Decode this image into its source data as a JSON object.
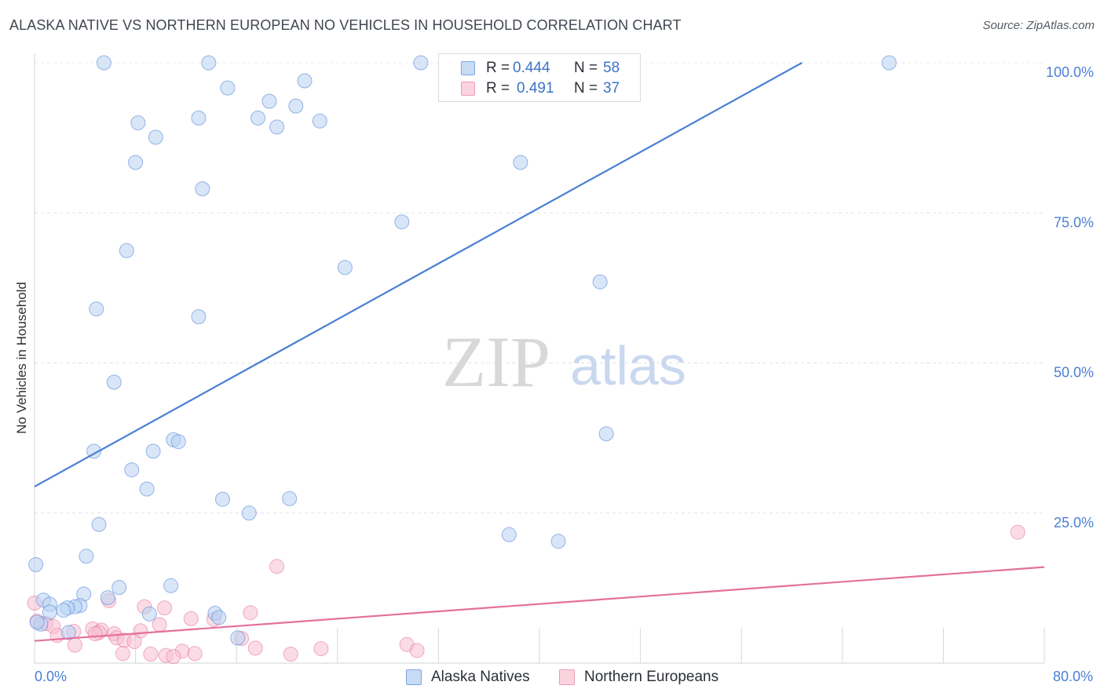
{
  "header": {
    "title": "ALASKA NATIVE VS NORTHERN EUROPEAN NO VEHICLES IN HOUSEHOLD CORRELATION CHART",
    "source": "Source: ZipAtlas.com"
  },
  "watermark": {
    "zip": "ZIP",
    "atlas": "atlas"
  },
  "legend_top": {
    "rows": [
      {
        "r_label": "R =",
        "r_value": "0.444",
        "n_label": "N =",
        "n_value": "58",
        "color": "#b8d1f3"
      },
      {
        "r_label": "R =",
        "r_value": "0.491",
        "n_label": "N =",
        "n_value": "37",
        "color": "#f7c0d1"
      }
    ]
  },
  "legend_bottom": {
    "items": [
      {
        "label": "Alaska Natives",
        "color": "#b8d1f3"
      },
      {
        "label": "Northern Europeans",
        "color": "#f7c0d1"
      }
    ]
  },
  "chart_data": {
    "type": "scatter",
    "title": "ALASKA NATIVE VS NORTHERN EUROPEAN NO VEHICLES IN HOUSEHOLD CORRELATION CHART",
    "ylabel": "No Vehicles in Household",
    "xlabel": "",
    "xlim": [
      0,
      80
    ],
    "ylim": [
      0,
      102
    ],
    "x_tick_labels": [
      "0.0%",
      "80.0%"
    ],
    "y_ticks": [
      25,
      50,
      75,
      100
    ],
    "y_tick_labels": [
      "25.0%",
      "50.0%",
      "75.0%",
      "100.0%"
    ],
    "grid": true,
    "legend_placement": "bottom",
    "series": [
      {
        "name": "Alaska Natives",
        "color": "#4a7fd4",
        "fill": "#b8d1f3",
        "r": "0.444",
        "n": "58",
        "trend": {
          "x": [
            0,
            60.8
          ],
          "y": [
            29.4,
            100
          ]
        },
        "points": [
          [
            5.5,
            100
          ],
          [
            13.8,
            100
          ],
          [
            30.6,
            100
          ],
          [
            33.0,
            100
          ],
          [
            67.7,
            100
          ],
          [
            15.3,
            95.8
          ],
          [
            21.4,
            97.0
          ],
          [
            18.6,
            93.6
          ],
          [
            20.7,
            92.8
          ],
          [
            13.0,
            90.8
          ],
          [
            8.2,
            90.0
          ],
          [
            17.7,
            90.8
          ],
          [
            22.6,
            90.3
          ],
          [
            19.2,
            89.3
          ],
          [
            9.6,
            87.6
          ],
          [
            8.0,
            83.4
          ],
          [
            38.5,
            83.4
          ],
          [
            13.3,
            79.0
          ],
          [
            29.1,
            73.5
          ],
          [
            7.3,
            68.7
          ],
          [
            24.6,
            65.9
          ],
          [
            44.8,
            63.5
          ],
          [
            4.9,
            59.0
          ],
          [
            13.0,
            57.7
          ],
          [
            6.3,
            46.8
          ],
          [
            11.0,
            37.2
          ],
          [
            11.4,
            36.9
          ],
          [
            45.3,
            38.2
          ],
          [
            4.7,
            35.3
          ],
          [
            9.4,
            35.3
          ],
          [
            7.7,
            32.2
          ],
          [
            8.9,
            29.0
          ],
          [
            14.9,
            27.3
          ],
          [
            20.2,
            27.4
          ],
          [
            17.0,
            25.0
          ],
          [
            5.1,
            23.1
          ],
          [
            37.6,
            21.4
          ],
          [
            41.5,
            20.3
          ],
          [
            4.1,
            17.8
          ],
          [
            0.1,
            16.4
          ],
          [
            6.7,
            12.6
          ],
          [
            10.8,
            12.9
          ],
          [
            3.9,
            11.5
          ],
          [
            5.8,
            10.9
          ],
          [
            0.7,
            10.5
          ],
          [
            1.2,
            9.8
          ],
          [
            3.6,
            9.6
          ],
          [
            3.2,
            9.4
          ],
          [
            2.6,
            9.2
          ],
          [
            2.3,
            8.8
          ],
          [
            1.2,
            8.5
          ],
          [
            9.1,
            8.2
          ],
          [
            14.3,
            8.3
          ],
          [
            14.6,
            7.6
          ],
          [
            0.5,
            6.5
          ],
          [
            2.7,
            5.1
          ],
          [
            16.1,
            4.2
          ],
          [
            0.2,
            6.8
          ]
        ]
      },
      {
        "name": "Northern Europeans",
        "color": "#e4709b",
        "fill": "#f7c0d1",
        "r": "0.491",
        "n": "37",
        "trend": {
          "x": [
            0,
            80
          ],
          "y": [
            3.7,
            16.0
          ]
        },
        "points": [
          [
            77.9,
            21.8
          ],
          [
            19.2,
            16.1
          ],
          [
            5.9,
            10.4
          ],
          [
            8.7,
            9.4
          ],
          [
            10.3,
            9.2
          ],
          [
            17.1,
            8.4
          ],
          [
            12.4,
            7.4
          ],
          [
            14.2,
            7.3
          ],
          [
            0.2,
            7.0
          ],
          [
            0.9,
            6.6
          ],
          [
            9.9,
            6.4
          ],
          [
            1.5,
            6.1
          ],
          [
            4.6,
            5.7
          ],
          [
            5.3,
            5.5
          ],
          [
            3.1,
            5.3
          ],
          [
            5.1,
            5.1
          ],
          [
            4.8,
            4.9
          ],
          [
            8.4,
            5.4
          ],
          [
            6.3,
            4.9
          ],
          [
            1.8,
            4.6
          ],
          [
            6.5,
            4.2
          ],
          [
            16.4,
            4.1
          ],
          [
            7.1,
            3.8
          ],
          [
            7.9,
            3.6
          ],
          [
            3.2,
            3.0
          ],
          [
            17.5,
            2.5
          ],
          [
            22.7,
            2.4
          ],
          [
            29.5,
            3.1
          ],
          [
            30.3,
            2.1
          ],
          [
            11.7,
            2.0
          ],
          [
            7.0,
            1.6
          ],
          [
            9.2,
            1.5
          ],
          [
            10.4,
            1.3
          ],
          [
            11.0,
            1.1
          ],
          [
            12.7,
            1.6
          ],
          [
            20.3,
            1.5
          ],
          [
            0.0,
            10.0
          ]
        ]
      }
    ]
  }
}
